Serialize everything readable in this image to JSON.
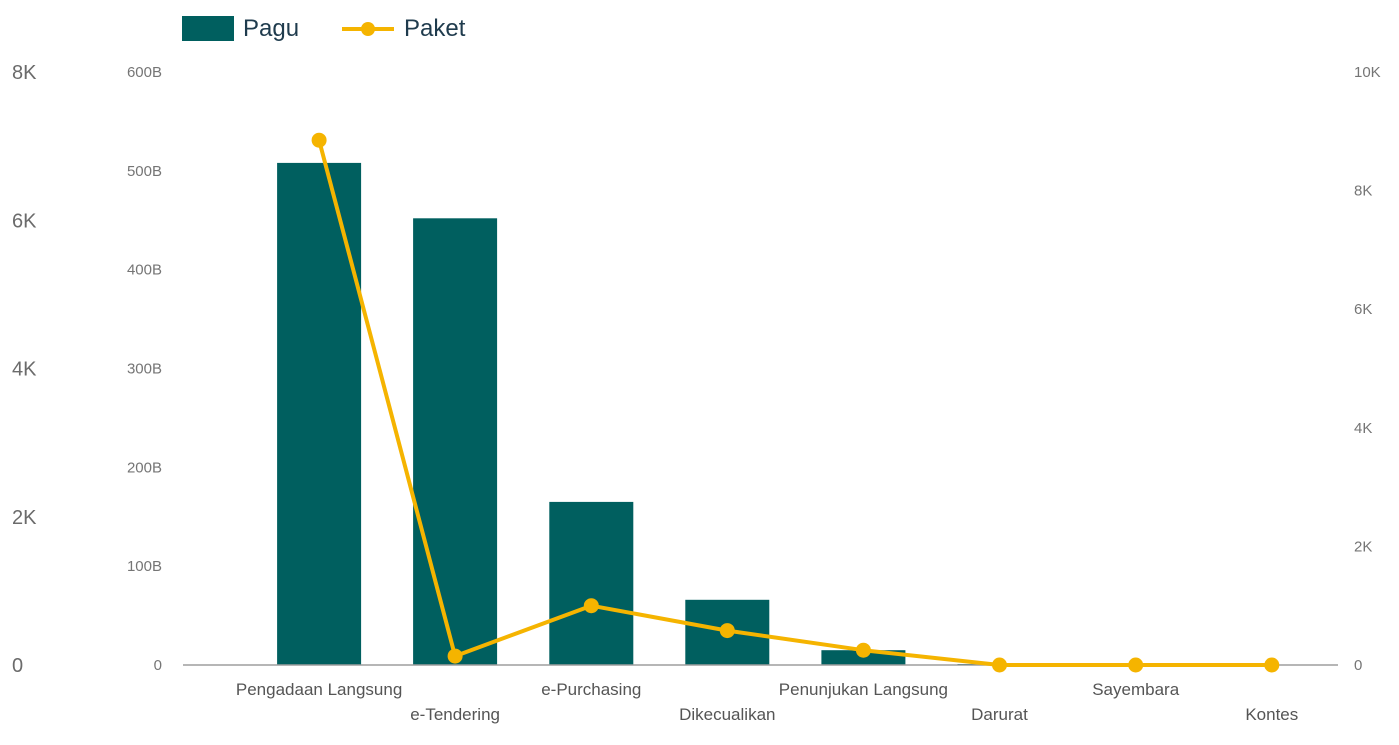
{
  "chart_data": {
    "type": "bar",
    "categories": [
      "Pengadaan Langsung",
      "e-Tendering",
      "e-Purchasing",
      "Dikecualikan",
      "Penunjukan Langsung",
      "Darurat",
      "Sayembara",
      "Kontes"
    ],
    "series": [
      {
        "name": "Pagu",
        "type": "bar",
        "axis": "left",
        "color": "#005f5f",
        "values": [
          508,
          452,
          165,
          66,
          15,
          1,
          0,
          0
        ]
      },
      {
        "name": "Paket",
        "type": "line",
        "axis": "right",
        "color": "#f5b400",
        "values": [
          8850,
          150,
          1000,
          580,
          250,
          0,
          0,
          0
        ]
      }
    ],
    "y_left": {
      "ticks": [
        "0",
        "100B",
        "200B",
        "300B",
        "400B",
        "500B",
        "600B"
      ],
      "ylim": [
        0,
        600
      ],
      "unit": "B"
    },
    "y_right": {
      "ticks": [
        "0",
        "2K",
        "4K",
        "6K",
        "8K",
        "10K"
      ],
      "ylim": [
        0,
        10000
      ]
    },
    "y_outer_left": {
      "ticks": [
        "0",
        "2K",
        "4K",
        "6K",
        "8K"
      ]
    },
    "legend": {
      "position": "top-left",
      "items": [
        "Pagu",
        "Paket"
      ]
    },
    "grid": false
  }
}
